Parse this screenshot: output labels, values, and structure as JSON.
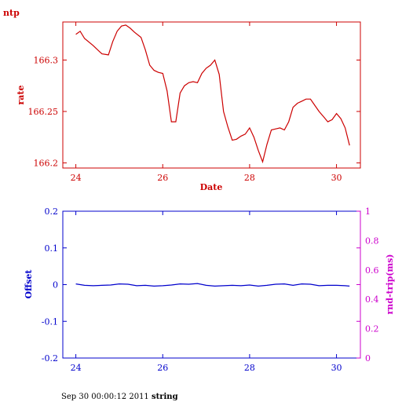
{
  "footer": {
    "timestamp": "Sep 30 00:00:12 2011",
    "host": "string"
  },
  "colors": {
    "top": "#cc0000",
    "bottom_left": "#0000cc",
    "bottom_right": "#cc00cc"
  },
  "chart_data": [
    {
      "type": "line",
      "title": "ntp",
      "xlabel": "Date",
      "ylabel": "rate",
      "xlim": [
        23.7,
        30.55
      ],
      "ylim": [
        166.195,
        166.337
      ],
      "xticks": [
        24,
        26,
        28,
        30
      ],
      "yticks": [
        166.2,
        166.25,
        166.3
      ],
      "ytick_labels": [
        "166.2",
        "166.25",
        "166.3"
      ],
      "series": [
        {
          "color": "#cc0000",
          "x": [
            24.0,
            24.1,
            24.2,
            24.4,
            24.6,
            24.75,
            24.85,
            24.95,
            25.05,
            25.15,
            25.25,
            25.35,
            25.5,
            25.6,
            25.7,
            25.8,
            25.9,
            26.0,
            26.1,
            26.2,
            26.3,
            26.4,
            26.5,
            26.6,
            26.7,
            26.8,
            26.9,
            27.0,
            27.1,
            27.2,
            27.3,
            27.4,
            27.5,
            27.6,
            27.7,
            27.8,
            27.9,
            28.0,
            28.1,
            28.2,
            28.3,
            28.4,
            28.5,
            28.6,
            28.7,
            28.8,
            28.9,
            29.0,
            29.1,
            29.2,
            29.3,
            29.4,
            29.5,
            29.6,
            29.7,
            29.8,
            29.9,
            30.0,
            30.1,
            30.2,
            30.3
          ],
          "y": [
            166.325,
            166.328,
            166.321,
            166.314,
            166.306,
            166.305,
            166.318,
            166.328,
            166.333,
            166.334,
            166.331,
            166.327,
            166.322,
            166.31,
            166.295,
            166.29,
            166.288,
            166.287,
            166.27,
            166.24,
            166.24,
            166.268,
            166.275,
            166.278,
            166.279,
            166.278,
            166.287,
            166.292,
            166.295,
            166.3,
            166.286,
            166.25,
            166.235,
            166.222,
            166.223,
            166.226,
            166.228,
            166.234,
            166.225,
            166.212,
            166.201,
            166.218,
            166.232,
            166.233,
            166.234,
            166.232,
            166.24,
            166.254,
            166.258,
            166.26,
            166.262,
            166.262,
            166.256,
            166.25,
            166.245,
            166.24,
            166.242,
            166.248,
            166.243,
            166.234,
            166.217
          ]
        }
      ]
    },
    {
      "type": "line",
      "xlabel": "",
      "ylabel": "Offset",
      "y2label": "rnd-trip(ms)",
      "xlim": [
        23.7,
        30.55
      ],
      "ylim": [
        -0.2,
        0.2
      ],
      "y2lim": [
        0,
        1
      ],
      "xticks": [
        24,
        26,
        28,
        30
      ],
      "yticks": [
        -0.2,
        -0.1,
        0,
        0.1,
        0.2
      ],
      "ytick_labels": [
        "-0.2",
        "-0.1",
        "0",
        "0.1",
        "0.2"
      ],
      "y2ticks": [
        0,
        0.2,
        0.4,
        0.6,
        0.8,
        1
      ],
      "y2tick_labels": [
        "0",
        "0.2",
        "0.4",
        "0.6",
        "0.8",
        "1"
      ],
      "series": [
        {
          "color": "#0000cc",
          "x": [
            24.0,
            24.2,
            24.4,
            24.6,
            24.8,
            25.0,
            25.2,
            25.4,
            25.6,
            25.8,
            26.0,
            26.2,
            26.4,
            26.6,
            26.8,
            27.0,
            27.2,
            27.4,
            27.6,
            27.8,
            28.0,
            28.2,
            28.4,
            28.6,
            28.8,
            29.0,
            29.2,
            29.4,
            29.6,
            29.8,
            30.0,
            30.2,
            30.3
          ],
          "y": [
            0.002,
            -0.002,
            -0.003,
            -0.002,
            -0.001,
            0.002,
            0.001,
            -0.003,
            -0.002,
            -0.004,
            -0.003,
            -0.001,
            0.002,
            0.001,
            0.003,
            -0.002,
            -0.004,
            -0.003,
            -0.002,
            -0.003,
            -0.001,
            -0.004,
            -0.002,
            0.001,
            0.002,
            -0.002,
            0.002,
            0.001,
            -0.003,
            -0.002,
            -0.002,
            -0.003,
            -0.004
          ]
        }
      ]
    }
  ]
}
